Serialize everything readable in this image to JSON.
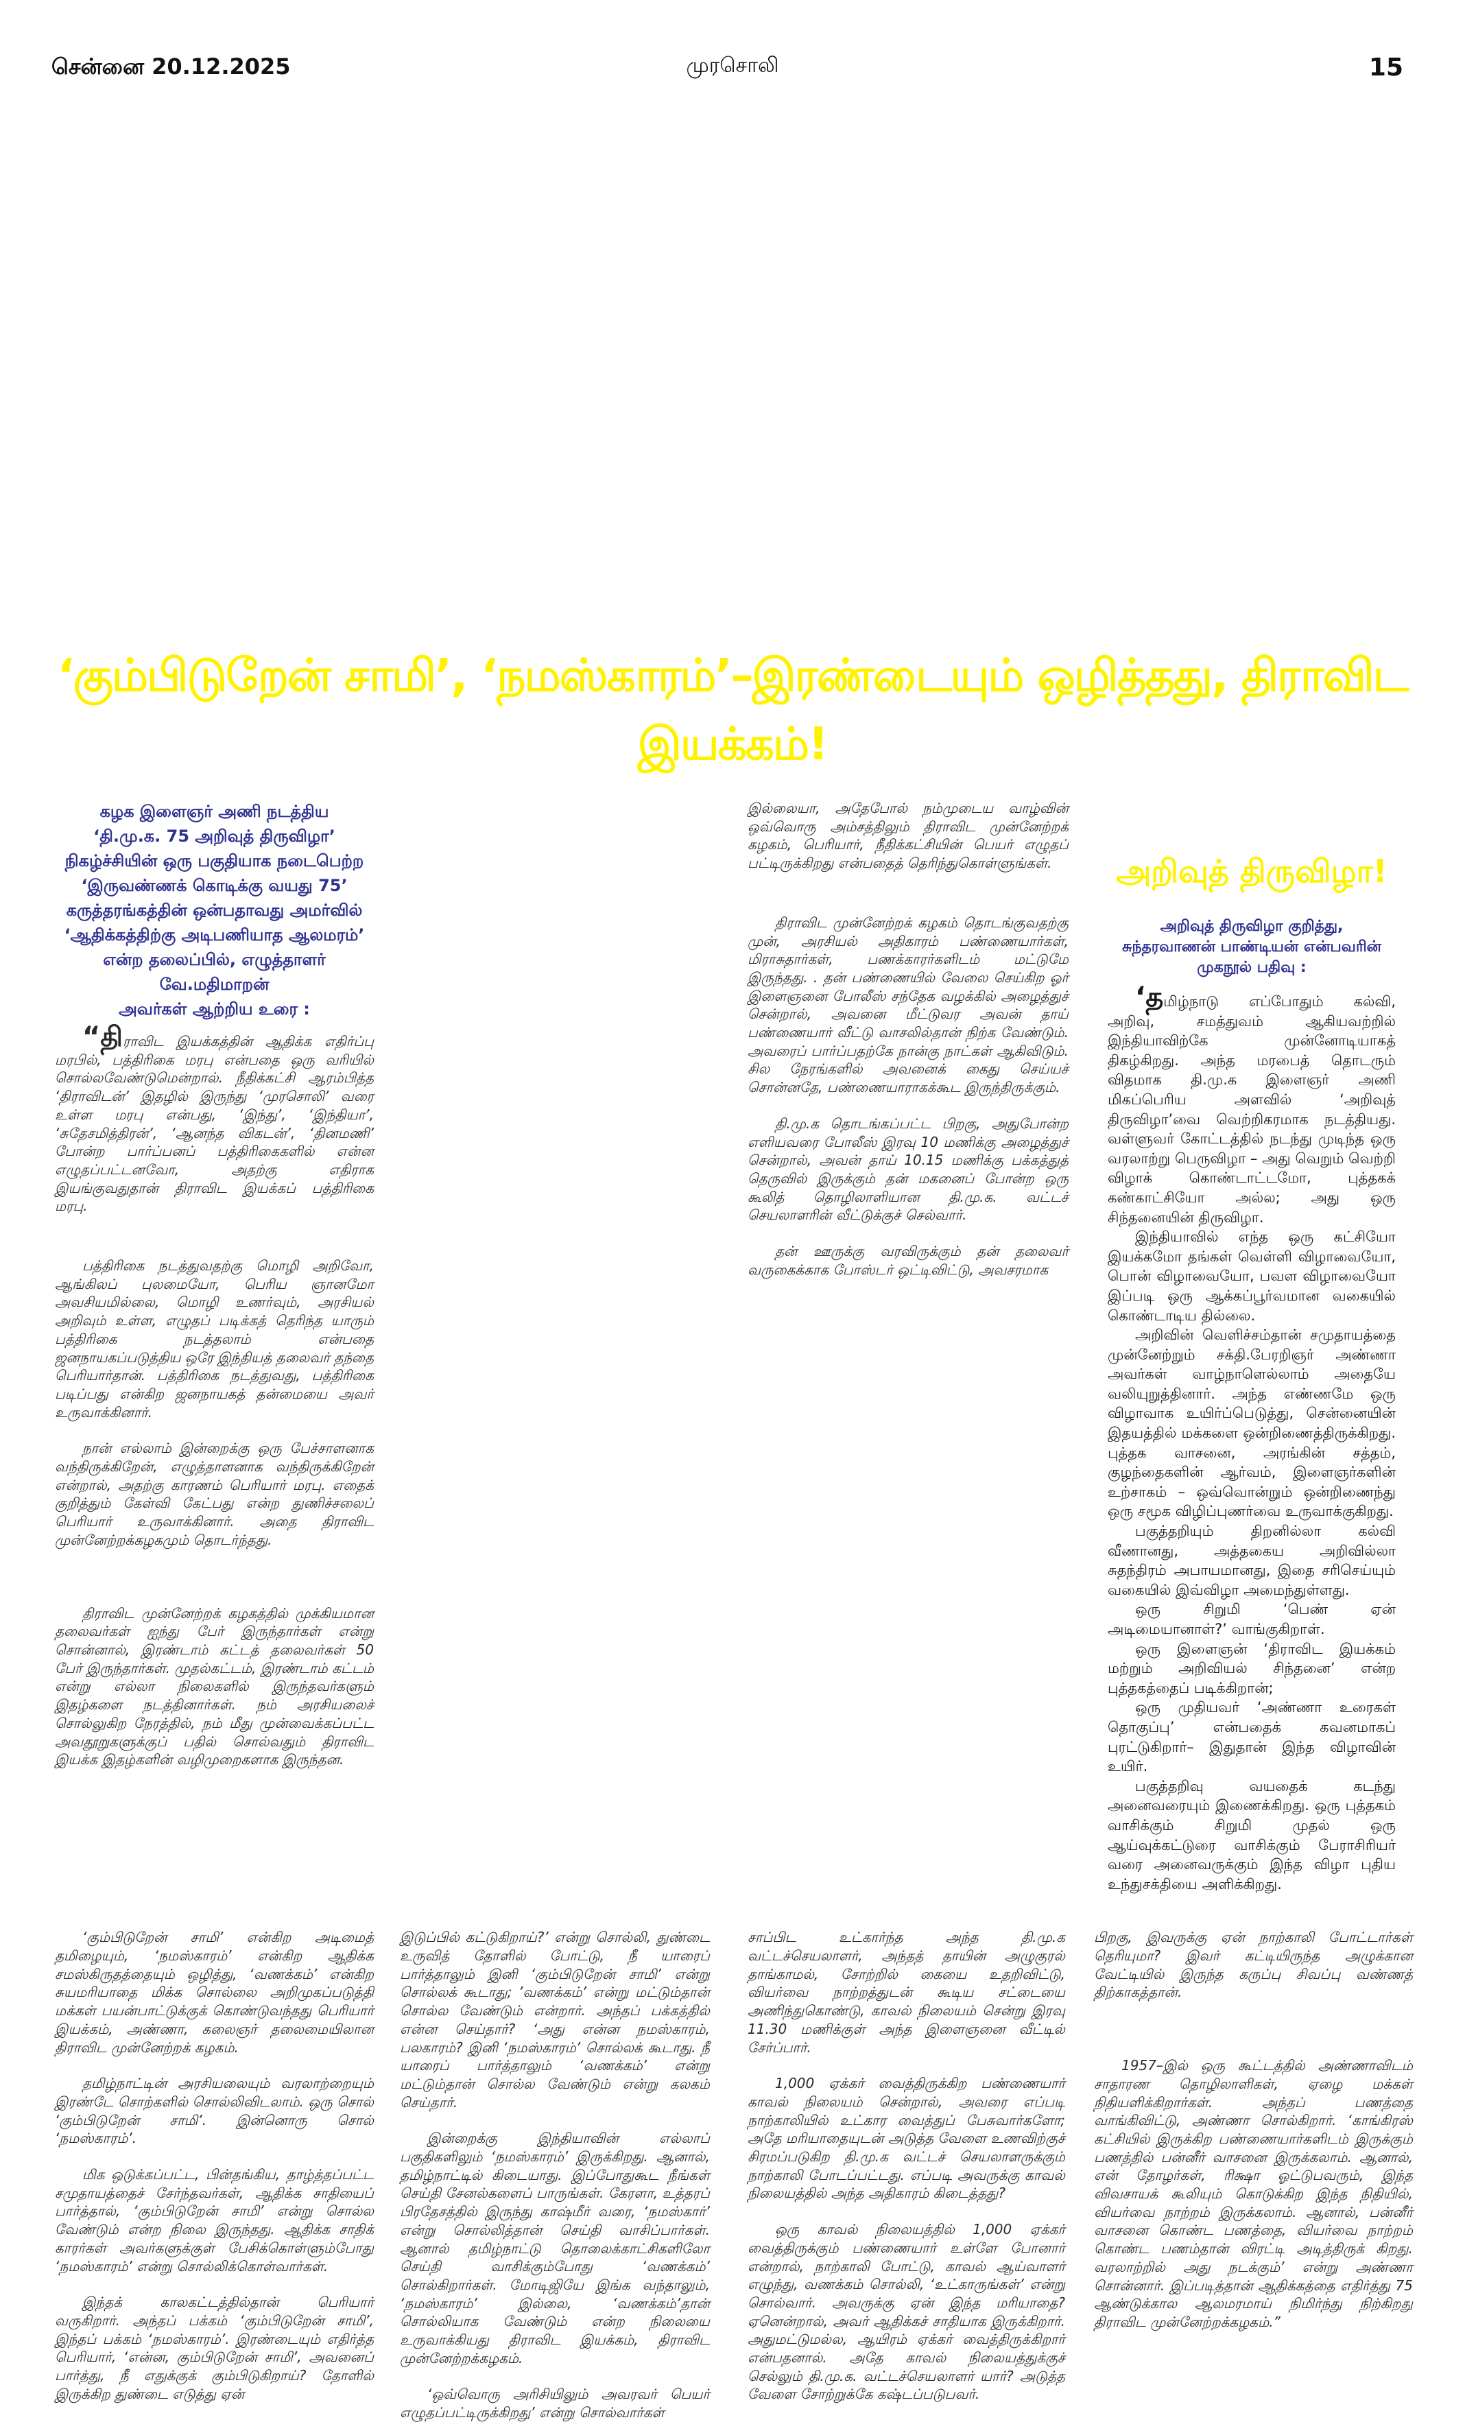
{
  "header": {
    "date": "சென்னை 20.12.2025",
    "masthead": "முரசொலி",
    "page": "15"
  },
  "headline": "‘கும்பிடுறேன் சாமி’, ‘நமஸ்காரம்’–இரண்டையும் ஒழித்தது, திராவிட இயக்கம்!",
  "colors": {
    "headline": "#fff200",
    "intro": "#2e3192"
  },
  "intro": [
    "கழக இளைஞர் அணி நடத்திய",
    "‘தி.மு.க. 75 அறிவுத் திருவிழா’",
    "நிகழ்ச்சியின் ஒரு பகுதியாக நடைபெற்ற",
    "‘இருவண்ணக் கொடிக்கு வயது 75’",
    "கருத்தரங்கத்தின் ஒன்பதாவது அமர்வில்",
    "‘ஆதிக்கத்திற்கு அடிபணியாத ஆலமரம்’",
    "என்ற தலைப்பில், எழுத்தாளர் வே.மதிமாறன்",
    "அவர்கள் ஆற்றிய உரை :"
  ],
  "col1": [
    "“திராவிட இயக்கத்தின் ஆதிக்க எதிர்ப்பு மரபில், பத்திரிகை மரபு என்பதை ஒரு வரியில் சொல்லவேண்டுமென்றால். நீதிக்கட்சி ஆரம்பித்த ‘திராவிடன்’ இதழில் இருந்து ‘முரசொலி’ வரை உள்ள மரபு என்பது, ‘இந்து’, ‘இந்தியா’, ‘சுதேசமித்திரன்’, ‘ஆனந்த விகடன்’, ‘தினமணி’ போன்ற பார்ப்பனப் பத்திரிகைகளில் என்ன எழுதப்பட்டனவோ, அதற்கு எதிராக இயங்குவதுதான் திராவிட இயக்கப் பத்திரிகை மரபு.",
    "பத்திரிகை நடத்துவதற்கு மொழி அறிவோ, ஆங்கிலப் புலமையோ, பெரிய ஞானமோ அவசியமில்லை, மொழி உணர்வும், அரசியல் அறிவும் உள்ள, எழுதப் படிக்கத் தெரிந்த யாரும் பத்திரிகை நடத்தலாம் என்பதை ஜனநாயகப்படுத்திய ஒரே இந்தியத் தலைவர் தந்தை பெரியார்தான். பத்திரிகை நடத்துவது, பத்திரிகை படிப்பது என்கிற ஜனநாயகத் தன்மையை அவர் உருவாக்கினார்.",
    "நான் எல்லாம் இன்றைக்கு ஒரு பேச்சாளனாக வந்திருக்கிறேன், எழுத்தாளனாக வந்திருக்கிறேன் என்றால், அதற்கு காரணம் பெரியார் மரபு. எதைக் குறித்தும் கேள்வி கேட்பது என்ற துணிச்சலைப் பெரியார் உருவாக்கினார். அதை திராவிட முன்னேற்றக்கழகமும் தொடர்ந்தது.",
    "திராவிட முன்னேற்றக் கழகத்தில் முக்கியமான தலைவர்கள் ஐந்து பேர் இருந்தார்கள் என்று சொன்னால், இரண்டாம் கட்டத் தலைவர்கள் 50 பேர் இருந்தார்கள். முதல்கட்டம், இரண்டாம் கட்டம் என்று எல்லா நிலைகளில் இருந்தவர்களும் இதழ்களை நடத்தினார்கள். நம் அரசியலைச் சொல்லுகிற நேரத்தில், நம் மீது முன்வைக்கப்பட்ட அவதூறுகளுக்குப் பதில் சொல்வதும் திராவிட இயக்க இதழ்களின் வழிமுறைகளாக இருந்தன."
  ],
  "col3": [
    "இல்லையா, அதேபோல் நம்முடைய வாழ்வின் ஒவ்வொரு அம்சத்திலும் திராவிட முன்னேற்றக் கழகம், பெரியார், நீதிக்கட்சியின் பெயர் எழுதப் பட்டிருக்கிறது என்பதைத் தெரிந்துகொள்ளுங்கள்.",
    "திராவிட முன்னேற்றக் கழகம் தொடங்குவதற்கு முன், அரசியல் அதிகாரம் பண்ணையார்கள், மிராசுதார்கள், பணக்காரர்களிடம் மட்டுமே இருந்தது. . தன் பண்ணையில் வேலை செய்கிற ஓர் இளைஞனை போலீஸ் சந்தேக வழக்கில் அழைத்துச் சென்றால், அவனை மீட்டுவர அவன் தாய் பண்ணையார் வீட்டு வாசலில்தான் நிற்க வேண்டும். அவரைப் பார்ப்பதற்கே நான்கு நாட்கள் ஆகிவிடும். சில நேரங்களில் அவனைக் கைது செய்யச் சொன்னதே, பண்ணையாராகக்கூட இருந்திருக்கும்.",
    "தி.மு.க தொடங்கப்பட்ட பிறகு, அதுபோன்ற எளியவரை போலீஸ் இரவு 10 மணிக்கு அழைத்துச் சென்றால், அவன் தாய் 10.15 மணிக்கு பக்கத்துத் தெருவில் இருக்கும் தன் மகனைப் போன்ற ஒரு கூலித் தொழிலாளியான தி.மு.க. வட்டச் செயலாளரின் வீட்டுக்குச் செல்வார்.",
    "தன் ஊருக்கு வரவிருக்கும் தன் தலைவர் வருகைக்காக போஸ்டர் ஒட்டிவிட்டு, அவசரமாக"
  ],
  "box": {
    "title": "அறிவுத் திருவிழா!",
    "subtitle": [
      "அறிவுத் திருவிழா குறித்து,",
      "சுந்தரவாணன் பாண்டியன் என்பவரின்",
      "முகநூல் பதிவு :"
    ],
    "paragraphs": [
      "‘தமிழ்நாடு எப்போதும் கல்வி, அறிவு, சமத்துவம் ஆகியவற்றில் இந்தியாவிற்கே முன்னோடியாகத் திகழ்கிறது. அந்த மரபைத் தொடரும் விதமாக தி.மு.க இளைஞர் அணி மிகப்பெரிய அளவில் ‘அறிவுத் திருவிழா’வை வெற்றிகரமாக நடத்தியது. வள்ளுவர் கோட்டத்தில் நடந்து முடிந்த ஒரு வரலாற்று பெருவிழா – அது வெறும் வெற்றி விழாக் கொண்டாட்டமோ, புத்தகக் கண்காட்சியோ அல்ல; அது ஒரு சிந்தனையின் திருவிழா.",
      "இந்தியாவில் எந்த ஒரு கட்சியோ இயக்கமோ தங்கள் வெள்ளி விழாவையோ, பொன் விழாவையோ, பவள விழாவையோ இப்படி ஒரு ஆக்கப்பூர்வமான வகையில் கொண்டாடிய தில்லை.",
      "அறிவின் வெளிச்சம்தான் சமுதாயத்தை முன்னேற்றும் சக்தி.பேரறிஞர் அண்ணா அவர்கள் வாழ்நாளெல்லாம் அதையே வலியுறுத்தினார். அந்த எண்ணமே ஒரு விழாவாக உயிர்ப்பெடுத்து, சென்னையின் இதயத்தில் மக்களை ஒன்றிணைத்திருக்கிறது. புத்தக வாசனை, அரங்கின் சத்தம், குழந்தைகளின் ஆர்வம், இளைஞர்களின் உற்சாகம் – ஒவ்வொன்றும் ஒன்றிணைந்து ஒரு சமூக விழிப்புணர்வை உருவாக்குகிறது.",
      "பகுத்தறியும் திறனில்லா கல்வி வீணானது, அத்தகைய அறிவில்லா சுதந்திரம் அபாயமானது, இதை சரிசெய்யும் வகையில் இவ்விழா அமைந்துள்ளது.",
      "ஒரு சிறுமி ‘பெண் ஏன் அடிமையானாள்?’ வாங்குகிறாள்.",
      "ஒரு இளைஞன் ‘திராவிட இயக்கம் மற்றும் அறிவியல் சிந்தனை’ என்ற புத்தகத்தைப் படிக்கிறான்;",
      "ஒரு முதியவர் ‘அண்ணா உரைகள் தொகுப்பு’ என்பதைக் கவனமாகப் புரட்டுகிறார்– இதுதான் இந்த விழாவின் உயிர்.",
      "பகுத்தறிவு வயதைக் கடந்து அனைவரையும் இணைக்கிறது. ஒரு புத்தகம் வாசிக்கும் சிறுமி முதல் ஒரு ஆய்வுக்கட்டுரை வாசிக்கும் பேராசிரியர் வரை அனைவருக்கும் இந்த விழா புதிய உந்துசக்தியை அளிக்கிறது."
    ]
  },
  "colA": [
    "‘கும்பிடுறேன் சாமி’ என்கிற அடிமைத் தமிழையும், ‘நமஸ்காரம்’ என்கிற ஆதிக்க சமஸ்கிருதத்தையும் ஒழித்து, ‘வணக்கம்’ என்கிற சுயமரியாதை மிக்க சொல்லை அறிமுகப்படுத்தி மக்கள் பயன்பாட்டுக்குக் கொண்டுவந்தது பெரியார் இயக்கம், அண்ணா, கலைஞர் தலைமையிலான திராவிட முன்னேற்றக் கழகம்.",
    "தமிழ்நாட்டின் அரசியலையும் வரலாற்றையும் இரண்டே சொற்களில் சொல்லிவிடலாம். ஒரு சொல் ‘கும்பிடுறேன் சாமி’. இன்னொரு சொல் ‘நமஸ்காரம்’.",
    "மிக ஒடுக்கப்பட்ட, பின்தங்கிய, தாழ்த்தப்பட்ட சமுதாயத்தைச் சேர்ந்தவர்கள், ஆதிக்க சாதியைப் பார்த்தால், ‘கும்பிடுறேன் சாமி’ என்று சொல்ல வேண்டும் என்ற நிலை இருந்தது. ஆதிக்க சாதிக் காரர்கள் அவர்களுக்குள் பேசிக்கொள்ளும்போது ‘நமஸ்காரம்’ என்று சொல்லிக்கொள்வார்கள்.",
    "இந்தக் காலகட்டத்தில்தான் பெரியார் வருகிறார். அந்தப் பக்கம் ‘கும்பிடுறேன் சாமி’, இந்தப் பக்கம் ‘நமஸ்காரம்’. இரண்டையும் எதிர்த்த பெரியார், ‘என்ன, கும்பிடுறேன் சாமி’, அவனைப் பார்த்து, நீ எதுக்குக் கும்பிடுகிறாய்? தோளில் இருக்கிற துண்டை எடுத்து ஏன்"
  ],
  "colB": [
    "இடுப்பில் கட்டுகிறாய்?’ என்று சொல்லி, துண்டை உருவித் தோளில் போட்டு, நீ யாரைப் பார்த்தாலும் இனி ‘கும்பிடுறேன் சாமி’ என்று சொல்லக் கூடாது; ’வணக்கம்’ என்று மட்டும்தான் சொல்ல வேண்டும் என்றார். அந்தப் பக்கத்தில் என்ன செய்தார்? ‘அது என்ன நமஸ்காரம், பலகாரம்? இனி ‘நமஸ்காரம்’ சொல்லக் கூடாது. நீ யாரைப் பார்த்தாலும் ‘வணக்கம்’ என்று மட்டும்தான் சொல்ல வேண்டும் என்று கலகம் செய்தார்.",
    "இன்றைக்கு இந்தியாவின் எல்லாப் பகுதிகளிலும் ‘நமஸ்காரம்’ இருக்கிறது. ஆனால், தமிழ்நாட்டில் கிடையாது. இப்போதுகூட நீங்கள் செய்தி சேனல்களைப் பாருங்கள். கேரளா, உத்தரப் பிரதேசத்தில் இருந்து காஷ்மீர் வரை, ‘நமஸ்கார்’ என்று சொல்லித்தான் செய்தி வாசிப்பார்கள். ஆனால் தமிழ்நாட்டு தொலைக்காட்சிகளிலோ செய்தி வாசிக்கும்போது ‘வணக்கம்’ சொல்கிறார்கள். மோடிஜியே இங்க வந்தாலும், ‘நமஸ்காரம்’ இல்லை, ‘வணக்கம்’தான் சொல்லியாக வேண்டும் என்ற நிலையை உருவாக்கியது திராவிட இயக்கம், திராவிட முன்னேற்றக்கழகம்.",
    "‘ஒவ்வொரு அரிசியிலும் அவரவர் பெயர் எழுதப்பட்டிருக்கிறது’ என்று சொல்வார்கள்"
  ],
  "colC": [
    "சாப்பிட உட்கார்ந்த அந்த தி.மு.க வட்டச்செயலாளர், அந்தத் தாயின் அழுகுரல் தாங்காமல், சோற்றில் கையை உதறிவிட்டு, வியர்வை நாற்றத்துடன் கூடிய சட்டையை அணிந்துகொண்டு, காவல் நிலையம் சென்று இரவு 11.30 மணிக்குள் அந்த இளைஞனை வீட்டில் சேர்ப்பார்.",
    "1,000 ஏக்கர் வைத்திருக்கிற பண்ணையார் காவல் நிலையம் சென்றால், அவரை எப்படி நாற்காலியில் உட்கார வைத்துப் பேசுவார்களோ; அதே மரியாதையுடன் அடுத்த வேளை உணவிற்குச் சிரமப்படுகிற தி.மு.க வட்டச் செயலாளருக்கும் நாற்காலி போடப்பட்டது. எப்படி அவருக்கு காவல் நிலையத்தில் அந்த அதிகாரம் கிடைத்தது?",
    "ஒரு காவல் நிலையத்தில் 1,000 ஏக்கர் வைத்திருக்கும் பண்ணையார் உள்ளே போனார் என்றால், நாற்காலி போட்டு, காவல் ஆய்வாளர் எழுந்து, வணக்கம் சொல்லி, ‘உட்காருங்கள்’ என்று சொல்வார். அவருக்கு ஏன் இந்த மரியாதை? ஏனென்றால், அவர் ஆதிக்கச் சாதியாக இருக்கிறார். அதுமட்டுமல்ல, ஆயிரம் ஏக்கர் வைத்திருக்கிறார் என்பதனால். அதே காவல் நிலையத்துக்குச் செல்லும் தி.மு.க. வட்டச்செயலாளர் யார்? அடுத்த வேளை சோற்றுக்கே கஷ்டப்படுபவர்."
  ],
  "colD": [
    "பிறகு, இவருக்கு ஏன் நாற்காலி போட்டார்கள் தெரியுமா? இவர் கட்டியிருந்த அழுக்கான வேட்டியில் இருந்த கருப்பு சிவப்பு வண்ணத் திற்காகத்தான்.",
    "1957–இல் ஒரு கூட்டத்தில் அண்ணாவிடம் சாதாரண தொழிலாளிகள், ஏழை மக்கள் நிதியளிக்கிறார்கள். அந்தப் பணத்தை வாங்கிவிட்டு, அண்ணா சொல்கிறார். ‘காங்கிரஸ் கட்சியில் இருக்கிற பண்ணையார்களிடம் இருக்கும் பணத்தில் பன்னீர் வாசனை இருக்கலாம். ஆனால், என் தோழர்கள், ரிக்ஷா ஓட்டுபவரும், இந்த விவசாயக் கூலியும் கொடுக்கிற இந்த நிதியில், வியர்வை நாற்றம் இருக்கலாம். ஆனால், பன்னீர் வாசனை கொண்ட பணத்தை, வியர்வை நாற்றம் கொண்ட பணம்தான் விரட்டி அடித்திருக் கிறது. வரலாற்றில் அது நடக்கும்’ என்று அண்ணா சொன்னார். இப்படித்தான் ஆதிக்கத்தை எதிர்த்து 75 ஆண்டுக்கால ஆலமரமாய் நிமிர்ந்து நிற்கிறது திராவிட முன்னேற்றக்கழகம்.”"
  ]
}
